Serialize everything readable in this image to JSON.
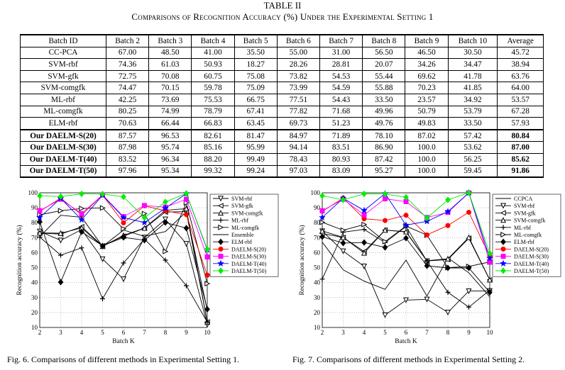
{
  "table": {
    "label": "TABLE II",
    "caption": "Comparisons of Recognition Accuracy (%) Under the Experimental Setting 1",
    "headers": [
      "Batch ID",
      "Batch 2",
      "Batch 3",
      "Batch 4",
      "Batch 5",
      "Batch 6",
      "Batch 7",
      "Batch 8",
      "Batch 9",
      "Batch 10",
      "Average"
    ],
    "rows": [
      {
        "name": "CC-PCA",
        "values": [
          "67.00",
          "48.50",
          "41.00",
          "35.50",
          "55.00",
          "31.00",
          "56.50",
          "46.50",
          "30.50",
          "45.72"
        ],
        "bold": false
      },
      {
        "name": "SVM-rbf",
        "values": [
          "74.36",
          "61.03",
          "50.93",
          "18.27",
          "28.26",
          "28.81",
          "20.07",
          "34.26",
          "34.47",
          "38.94"
        ],
        "bold": false
      },
      {
        "name": "SVM-gfk",
        "values": [
          "72.75",
          "70.08",
          "60.75",
          "75.08",
          "73.82",
          "54.53",
          "55.44",
          "69.62",
          "41.78",
          "63.76"
        ],
        "bold": false
      },
      {
        "name": "SVM-comgfk",
        "values": [
          "74.47",
          "70.15",
          "59.78",
          "75.09",
          "73.99",
          "54.59",
          "55.88",
          "70.23",
          "41.85",
          "64.00"
        ],
        "bold": false
      },
      {
        "name": "ML-rbf",
        "values": [
          "42.25",
          "73.69",
          "75.53",
          "66.75",
          "77.51",
          "54.43",
          "33.50",
          "23.57",
          "34.92",
          "53.57"
        ],
        "bold": false
      },
      {
        "name": "ML-comgfk",
        "values": [
          "80.25",
          "74.99",
          "78.79",
          "67.41",
          "77.82",
          "71.68",
          "49.96",
          "50.79",
          "53.79",
          "67.28"
        ],
        "bold": false
      },
      {
        "name": "ELM-rbf",
        "values": [
          "70.63",
          "66.44",
          "66.83",
          "63.45",
          "69.73",
          "51.23",
          "49.76",
          "49.83",
          "33.50",
          "57.93"
        ],
        "bold": false
      },
      {
        "name": "Our DAELM-S(20)",
        "values": [
          "87.57",
          "96.53",
          "82.61",
          "81.47",
          "84.97",
          "71.89",
          "78.10",
          "87.02",
          "57.42",
          "80.84"
        ],
        "bold": true
      },
      {
        "name": "Our DAELM-S(30)",
        "values": [
          "87.98",
          "95.74",
          "85.16",
          "95.99",
          "94.14",
          "83.51",
          "86.90",
          "100.0",
          "53.62",
          "87.00"
        ],
        "bold": true
      },
      {
        "name": "Our DAELM-T(40)",
        "values": [
          "83.52",
          "96.34",
          "88.20",
          "99.49",
          "78.43",
          "80.93",
          "87.42",
          "100.0",
          "56.25",
          "85.62"
        ],
        "bold": true
      },
      {
        "name": "Our DAELM-T(50)",
        "values": [
          "97.96",
          "95.34",
          "99.32",
          "99.24",
          "97.03",
          "83.09",
          "95.27",
          "100.0",
          "59.45",
          "91.86"
        ],
        "bold": true
      }
    ]
  },
  "chart_data": [
    {
      "type": "line",
      "xlabel": "Batch K",
      "ylabel": "Recognition accuracy (%)",
      "x": [
        2,
        3,
        4,
        5,
        6,
        7,
        8,
        9,
        10
      ],
      "xlim": [
        2,
        10
      ],
      "ylim": [
        10,
        100
      ],
      "yticks": [
        10,
        20,
        30,
        40,
        50,
        60,
        70,
        80,
        90,
        100
      ],
      "grid": true,
      "legend": "top-right",
      "series": [
        {
          "name": "SVM-rbf",
          "color": "#000000",
          "marker": "tri-down",
          "values": [
            74.2,
            68.2,
            75.4,
            55.7,
            42.3,
            70.2,
            82.3,
            66.0,
            11.9
          ]
        },
        {
          "name": "SVM-gfk",
          "color": "#000000",
          "marker": "tri-left",
          "values": [
            73.1,
            72.4,
            77.3,
            64.6,
            71.0,
            76.3,
            87.1,
            87.4,
            13.6
          ]
        },
        {
          "name": "SVM-comgfk",
          "color": "#000000",
          "marker": "tri-up",
          "values": [
            73.2,
            73.0,
            76.5,
            64.2,
            71.6,
            76.4,
            88.3,
            89.4,
            13.6
          ]
        },
        {
          "name": "ML-rbf",
          "color": "#000000",
          "marker": "plus",
          "values": [
            70.4,
            58.3,
            63.2,
            29.2,
            53.1,
            69.1,
            55.0,
            37.9,
            13.6
          ]
        },
        {
          "name": "ML-comgfk",
          "color": "#000000",
          "marker": "tri-right",
          "values": [
            85.3,
            88.0,
            89.5,
            89.9,
            75.9,
            86.1,
            60.8,
            93.3,
            39.3
          ]
        },
        {
          "name": "Ensemble",
          "color": "#000000",
          "marker": "none",
          "values": [
            70.6,
            85.0,
            83.6,
            64.2,
            75.1,
            70.9,
            74.1,
            87.3,
            21.6
          ]
        },
        {
          "name": "ELM-rbf",
          "color": "#000000",
          "marker": "diamond",
          "values": [
            80.6,
            40.3,
            73.9,
            64.5,
            70.2,
            68.3,
            80.1,
            76.4,
            22.2
          ]
        },
        {
          "name": "DAELM-S(20)",
          "color": "#ff0000",
          "marker": "circle",
          "values": [
            87.6,
            96.5,
            85.2,
            98.5,
            79.9,
            91.3,
            87.9,
            85.4,
            45.0
          ]
        },
        {
          "name": "DAELM-S(30)",
          "color": "#ff00ff",
          "marker": "square",
          "values": [
            88.0,
            95.7,
            86.1,
            98.6,
            84.1,
            91.5,
            90.4,
            95.7,
            57.1
          ]
        },
        {
          "name": "DAELM-T(40)",
          "color": "#0000ff",
          "marker": "star",
          "values": [
            83.5,
            96.3,
            82.0,
            98.4,
            83.4,
            80.1,
            89.7,
            99.5,
            61.9
          ]
        },
        {
          "name": "DAELM-T(50)",
          "color": "#00ee00",
          "marker": "diamond",
          "values": [
            98.0,
            97.5,
            99.3,
            99.2,
            97.3,
            83.4,
            93.9,
            99.6,
            62.4
          ]
        }
      ]
    },
    {
      "type": "line",
      "xlabel": "Batch K",
      "ylabel": "Recognition accuracy (%)",
      "x": [
        2,
        3,
        4,
        5,
        6,
        7,
        8,
        9,
        10
      ],
      "xlim": [
        2,
        10
      ],
      "ylim": [
        10,
        100
      ],
      "yticks": [
        10,
        20,
        30,
        40,
        50,
        60,
        70,
        80,
        90,
        100
      ],
      "grid": true,
      "legend": "top-right",
      "series": [
        {
          "name": "CCPCA",
          "color": "#000000",
          "marker": "none",
          "values": [
            67.0,
            48.5,
            41.0,
            35.5,
            55.0,
            31.0,
            56.5,
            46.5,
            30.5
          ]
        },
        {
          "name": "SVM-rbf",
          "color": "#000000",
          "marker": "tri-down",
          "values": [
            74.4,
            61.0,
            50.9,
            18.3,
            28.3,
            28.8,
            20.1,
            34.3,
            34.5
          ]
        },
        {
          "name": "SVM-gfk",
          "color": "#000000",
          "marker": "tri-left",
          "values": [
            72.8,
            70.1,
            60.8,
            75.1,
            73.8,
            54.5,
            55.4,
            69.6,
            41.8
          ]
        },
        {
          "name": "SVM-comgfk",
          "color": "#000000",
          "marker": "tri-up",
          "values": [
            74.5,
            70.2,
            59.8,
            75.1,
            74.0,
            54.6,
            55.9,
            70.2,
            41.9
          ]
        },
        {
          "name": "ML-rbf",
          "color": "#000000",
          "marker": "plus",
          "values": [
            42.3,
            73.7,
            75.5,
            66.8,
            77.5,
            54.4,
            33.5,
            23.6,
            34.9
          ]
        },
        {
          "name": "ML-comgfk",
          "color": "#000000",
          "marker": "tri-right",
          "values": [
            80.3,
            75.0,
            78.8,
            67.4,
            77.8,
            71.7,
            50.0,
            50.8,
            53.8
          ]
        },
        {
          "name": "ELM-rbf",
          "color": "#000000",
          "marker": "diamond",
          "values": [
            70.6,
            66.4,
            66.8,
            63.5,
            69.7,
            51.2,
            49.8,
            49.8,
            33.5
          ]
        },
        {
          "name": "DAELM-S(20)",
          "color": "#ff0000",
          "marker": "circle",
          "values": [
            87.6,
            96.5,
            82.6,
            81.5,
            85.0,
            71.9,
            78.1,
            87.0,
            57.4
          ]
        },
        {
          "name": "DAELM-S(30)",
          "color": "#ff00ff",
          "marker": "square",
          "values": [
            88.0,
            95.7,
            85.2,
            96.0,
            94.1,
            83.5,
            86.9,
            100.0,
            53.6
          ]
        },
        {
          "name": "DAELM-T(40)",
          "color": "#0000ff",
          "marker": "star",
          "values": [
            83.5,
            96.3,
            88.2,
            99.5,
            78.4,
            80.9,
            87.4,
            100.0,
            56.3
          ]
        },
        {
          "name": "DAELM-T(50)",
          "color": "#00ee00",
          "marker": "diamond",
          "values": [
            98.0,
            95.3,
            99.3,
            99.2,
            97.0,
            83.1,
            95.3,
            100.0,
            59.5
          ]
        }
      ]
    }
  ],
  "captions": {
    "fig6": "Fig. 6.   Comparisons of different methods in Experimental Setting 1.",
    "fig7": "Fig. 7.   Comparisons of different methods in Experimental Setting 2."
  }
}
